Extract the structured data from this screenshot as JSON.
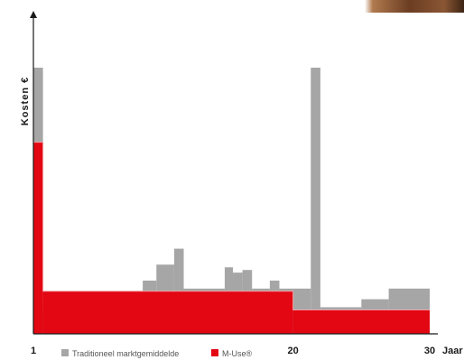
{
  "chart_data": {
    "type": "bar",
    "xlabel": "Jaar",
    "ylabel": "Kosten €",
    "x_tick_labels": [
      "1",
      "20",
      "30"
    ],
    "x_ticks": [
      1,
      20,
      30
    ],
    "xlim": [
      1,
      30
    ],
    "ylim": [
      0,
      100
    ],
    "series": [
      {
        "name": "Traditioneel marktgemiddelde",
        "color": "#a6a6a6",
        "segments": [
          {
            "x0": 1,
            "x1": 1.7,
            "value": 100
          },
          {
            "x0": 1.7,
            "x1": 5,
            "value": 9
          },
          {
            "x0": 5,
            "x1": 7,
            "value": 13
          },
          {
            "x0": 7,
            "x1": 9,
            "value": 15
          },
          {
            "x0": 9,
            "x1": 10,
            "value": 20
          },
          {
            "x0": 10,
            "x1": 11.3,
            "value": 26
          },
          {
            "x0": 11.3,
            "x1": 12,
            "value": 32
          },
          {
            "x0": 12,
            "x1": 15,
            "value": 17
          },
          {
            "x0": 15,
            "x1": 15.6,
            "value": 25
          },
          {
            "x0": 15.6,
            "x1": 16.3,
            "value": 23
          },
          {
            "x0": 16.3,
            "x1": 17,
            "value": 24
          },
          {
            "x0": 17,
            "x1": 18.3,
            "value": 17
          },
          {
            "x0": 18.3,
            "x1": 19,
            "value": 20
          },
          {
            "x0": 19,
            "x1": 20,
            "value": 17
          },
          {
            "x0": 20,
            "x1": 21.3,
            "value": 17
          },
          {
            "x0": 21.3,
            "x1": 22,
            "value": 100
          },
          {
            "x0": 22,
            "x1": 25,
            "value": 10
          },
          {
            "x0": 25,
            "x1": 27,
            "value": 13
          },
          {
            "x0": 27,
            "x1": 30,
            "value": 17
          }
        ]
      },
      {
        "name": "M-Use®",
        "color": "#e30613",
        "segments": [
          {
            "x0": 1,
            "x1": 1.7,
            "value": 72
          },
          {
            "x0": 1.7,
            "x1": 20,
            "value": 16
          },
          {
            "x0": 20,
            "x1": 30,
            "value": 9
          }
        ]
      }
    ],
    "legend": {
      "position": "bottom",
      "entries": [
        "Traditioneel marktgemiddelde",
        "M-Use®"
      ]
    }
  }
}
